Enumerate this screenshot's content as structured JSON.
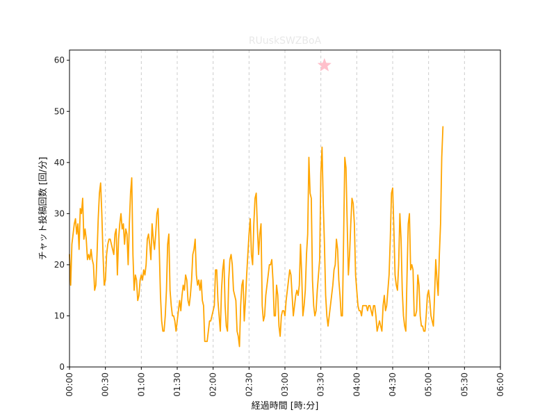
{
  "chart_data": {
    "type": "line",
    "title": "RUuskSWZBoA",
    "xlabel": "経過時間 [時:分]",
    "ylabel": "チャット投稿回数 [回/分]",
    "xlim": [
      0,
      360
    ],
    "ylim": [
      0,
      62
    ],
    "x_ticks": [
      {
        "value": 0,
        "label": "00:00"
      },
      {
        "value": 30,
        "label": "00:30"
      },
      {
        "value": 60,
        "label": "01:00"
      },
      {
        "value": 90,
        "label": "01:30"
      },
      {
        "value": 120,
        "label": "02:00"
      },
      {
        "value": 150,
        "label": "02:30"
      },
      {
        "value": 180,
        "label": "03:00"
      },
      {
        "value": 210,
        "label": "03:30"
      },
      {
        "value": 240,
        "label": "04:00"
      },
      {
        "value": 270,
        "label": "04:30"
      },
      {
        "value": 300,
        "label": "05:00"
      },
      {
        "value": 330,
        "label": "05:30"
      },
      {
        "value": 360,
        "label": "06:00"
      }
    ],
    "y_ticks": [
      0,
      10,
      20,
      30,
      40,
      50,
      60
    ],
    "vertical_gridlines": true,
    "horizontal_gridlines": false,
    "series": [
      {
        "color": "#FFA500",
        "points": [
          [
            0,
            22
          ],
          [
            1,
            16
          ],
          [
            2,
            24
          ],
          [
            4,
            28
          ],
          [
            5,
            29
          ],
          [
            6,
            26
          ],
          [
            7,
            28
          ],
          [
            8,
            23
          ],
          [
            9,
            31
          ],
          [
            10,
            30
          ],
          [
            11,
            33
          ],
          [
            12,
            25
          ],
          [
            13,
            27
          ],
          [
            14,
            25
          ],
          [
            15,
            21
          ],
          [
            16,
            22
          ],
          [
            17,
            21
          ],
          [
            18,
            23
          ],
          [
            19,
            21
          ],
          [
            20,
            20
          ],
          [
            21,
            15
          ],
          [
            22,
            16
          ],
          [
            23,
            22
          ],
          [
            24,
            29
          ],
          [
            25,
            34
          ],
          [
            26,
            36
          ],
          [
            27,
            30
          ],
          [
            28,
            22
          ],
          [
            29,
            16
          ],
          [
            30,
            17
          ],
          [
            31,
            22
          ],
          [
            32,
            24
          ],
          [
            33,
            25
          ],
          [
            34,
            25
          ],
          [
            35,
            24
          ],
          [
            36,
            23
          ],
          [
            37,
            22
          ],
          [
            38,
            26
          ],
          [
            39,
            27
          ],
          [
            40,
            18
          ],
          [
            41,
            25
          ],
          [
            42,
            28
          ],
          [
            43,
            30
          ],
          [
            44,
            27
          ],
          [
            45,
            28
          ],
          [
            46,
            24
          ],
          [
            47,
            27
          ],
          [
            48,
            26
          ],
          [
            49,
            20
          ],
          [
            50,
            28
          ],
          [
            51,
            34
          ],
          [
            52,
            37
          ],
          [
            53,
            22
          ],
          [
            54,
            15
          ],
          [
            55,
            18
          ],
          [
            56,
            17
          ],
          [
            57,
            13
          ],
          [
            58,
            14
          ],
          [
            59,
            17
          ],
          [
            60,
            18
          ],
          [
            61,
            17
          ],
          [
            62,
            19
          ],
          [
            63,
            18
          ],
          [
            64,
            20
          ],
          [
            65,
            25
          ],
          [
            66,
            26
          ],
          [
            67,
            24
          ],
          [
            68,
            21
          ],
          [
            69,
            28
          ],
          [
            70,
            25
          ],
          [
            71,
            23
          ],
          [
            72,
            26
          ],
          [
            73,
            30
          ],
          [
            74,
            31
          ],
          [
            75,
            23
          ],
          [
            76,
            14
          ],
          [
            77,
            9
          ],
          [
            78,
            7
          ],
          [
            79,
            7
          ],
          [
            80,
            10
          ],
          [
            81,
            15
          ],
          [
            82,
            24
          ],
          [
            83,
            26
          ],
          [
            84,
            15
          ],
          [
            85,
            12
          ],
          [
            86,
            10
          ],
          [
            87,
            10
          ],
          [
            88,
            9
          ],
          [
            89,
            7
          ],
          [
            90,
            9
          ],
          [
            91,
            11
          ],
          [
            92,
            13
          ],
          [
            93,
            11
          ],
          [
            94,
            14
          ],
          [
            95,
            16
          ],
          [
            96,
            15
          ],
          [
            97,
            18
          ],
          [
            98,
            17
          ],
          [
            99,
            13
          ],
          [
            100,
            12
          ],
          [
            101,
            14
          ],
          [
            102,
            17
          ],
          [
            103,
            22
          ],
          [
            104,
            23
          ],
          [
            105,
            25
          ],
          [
            106,
            18
          ],
          [
            107,
            16
          ],
          [
            108,
            17
          ],
          [
            109,
            15
          ],
          [
            110,
            17
          ],
          [
            111,
            13
          ],
          [
            112,
            12
          ],
          [
            113,
            5
          ],
          [
            114,
            5
          ],
          [
            115,
            5
          ],
          [
            116,
            7
          ],
          [
            117,
            9
          ],
          [
            118,
            9
          ],
          [
            119,
            10
          ],
          [
            120,
            11
          ],
          [
            121,
            12
          ],
          [
            122,
            19
          ],
          [
            123,
            19
          ],
          [
            124,
            13
          ],
          [
            125,
            10
          ],
          [
            126,
            7
          ],
          [
            127,
            15
          ],
          [
            128,
            19
          ],
          [
            129,
            21
          ],
          [
            130,
            12
          ],
          [
            131,
            8
          ],
          [
            132,
            7
          ],
          [
            133,
            17
          ],
          [
            134,
            21
          ],
          [
            135,
            22
          ],
          [
            136,
            20
          ],
          [
            137,
            15
          ],
          [
            138,
            14
          ],
          [
            139,
            13
          ],
          [
            140,
            7
          ],
          [
            141,
            6
          ],
          [
            142,
            4
          ],
          [
            143,
            12
          ],
          [
            144,
            16
          ],
          [
            145,
            17
          ],
          [
            146,
            9
          ],
          [
            147,
            13
          ],
          [
            148,
            18
          ],
          [
            149,
            22
          ],
          [
            150,
            26
          ],
          [
            151,
            29
          ],
          [
            152,
            22
          ],
          [
            153,
            20
          ],
          [
            154,
            28
          ],
          [
            155,
            33
          ],
          [
            156,
            34
          ],
          [
            157,
            27
          ],
          [
            158,
            22
          ],
          [
            159,
            26
          ],
          [
            160,
            28
          ],
          [
            161,
            12
          ],
          [
            162,
            9
          ],
          [
            163,
            10
          ],
          [
            164,
            14
          ],
          [
            165,
            16
          ],
          [
            166,
            18
          ],
          [
            167,
            20
          ],
          [
            168,
            20
          ],
          [
            169,
            21
          ],
          [
            170,
            17
          ],
          [
            171,
            10
          ],
          [
            172,
            10
          ],
          [
            173,
            16
          ],
          [
            174,
            14
          ],
          [
            175,
            8
          ],
          [
            176,
            6
          ],
          [
            177,
            10
          ],
          [
            178,
            11
          ],
          [
            179,
            11
          ],
          [
            180,
            10
          ],
          [
            181,
            13
          ],
          [
            182,
            15
          ],
          [
            183,
            17
          ],
          [
            184,
            19
          ],
          [
            185,
            18
          ],
          [
            186,
            14
          ],
          [
            187,
            10
          ],
          [
            188,
            12
          ],
          [
            189,
            14
          ],
          [
            190,
            15
          ],
          [
            191,
            14
          ],
          [
            192,
            16
          ],
          [
            193,
            24
          ],
          [
            194,
            18
          ],
          [
            195,
            10
          ],
          [
            196,
            12
          ],
          [
            197,
            15
          ],
          [
            198,
            22
          ],
          [
            199,
            26
          ],
          [
            200,
            41
          ],
          [
            201,
            34
          ],
          [
            202,
            33
          ],
          [
            203,
            17
          ],
          [
            204,
            12
          ],
          [
            205,
            10
          ],
          [
            206,
            11
          ],
          [
            207,
            15
          ],
          [
            208,
            18
          ],
          [
            209,
            21
          ],
          [
            210,
            38
          ],
          [
            211,
            43
          ],
          [
            212,
            32
          ],
          [
            213,
            24
          ],
          [
            214,
            14
          ],
          [
            215,
            10
          ],
          [
            216,
            8
          ],
          [
            217,
            10
          ],
          [
            218,
            12
          ],
          [
            219,
            14
          ],
          [
            220,
            16
          ],
          [
            221,
            19
          ],
          [
            222,
            20
          ],
          [
            223,
            25
          ],
          [
            224,
            23
          ],
          [
            225,
            17
          ],
          [
            226,
            14
          ],
          [
            227,
            10
          ],
          [
            228,
            10
          ],
          [
            229,
            25
          ],
          [
            230,
            41
          ],
          [
            231,
            39
          ],
          [
            232,
            28
          ],
          [
            233,
            18
          ],
          [
            234,
            22
          ],
          [
            235,
            28
          ],
          [
            236,
            33
          ],
          [
            237,
            32
          ],
          [
            238,
            28
          ],
          [
            239,
            18
          ],
          [
            240,
            15
          ],
          [
            241,
            12
          ],
          [
            242,
            11
          ],
          [
            243,
            11
          ],
          [
            244,
            10
          ],
          [
            245,
            12
          ],
          [
            246,
            12
          ],
          [
            247,
            12
          ],
          [
            248,
            12
          ],
          [
            249,
            11
          ],
          [
            250,
            12
          ],
          [
            251,
            12
          ],
          [
            252,
            11
          ],
          [
            253,
            10
          ],
          [
            254,
            12
          ],
          [
            255,
            12
          ],
          [
            256,
            10
          ],
          [
            257,
            7
          ],
          [
            258,
            8
          ],
          [
            259,
            9
          ],
          [
            260,
            8
          ],
          [
            261,
            7
          ],
          [
            262,
            12
          ],
          [
            263,
            14
          ],
          [
            264,
            11
          ],
          [
            265,
            12
          ],
          [
            266,
            15
          ],
          [
            267,
            18
          ],
          [
            268,
            25
          ],
          [
            269,
            34
          ],
          [
            270,
            35
          ],
          [
            271,
            27
          ],
          [
            272,
            18
          ],
          [
            273,
            16
          ],
          [
            274,
            15
          ],
          [
            275,
            20
          ],
          [
            276,
            30
          ],
          [
            277,
            25
          ],
          [
            278,
            15
          ],
          [
            279,
            10
          ],
          [
            280,
            8
          ],
          [
            281,
            7
          ],
          [
            282,
            18
          ],
          [
            283,
            28
          ],
          [
            284,
            30
          ],
          [
            285,
            19
          ],
          [
            286,
            20
          ],
          [
            287,
            19
          ],
          [
            288,
            10
          ],
          [
            289,
            10
          ],
          [
            290,
            11
          ],
          [
            291,
            18
          ],
          [
            292,
            16
          ],
          [
            293,
            10
          ],
          [
            294,
            8
          ],
          [
            295,
            8
          ],
          [
            296,
            7
          ],
          [
            297,
            7
          ],
          [
            298,
            10
          ],
          [
            299,
            14
          ],
          [
            300,
            15
          ],
          [
            301,
            13
          ],
          [
            302,
            10
          ],
          [
            303,
            9
          ],
          [
            304,
            8
          ],
          [
            305,
            14
          ],
          [
            306,
            21
          ],
          [
            307,
            17
          ],
          [
            308,
            14
          ],
          [
            309,
            22
          ],
          [
            310,
            28
          ],
          [
            311,
            41
          ],
          [
            312,
            47
          ]
        ]
      }
    ],
    "marker": {
      "shape": "star",
      "x": 213,
      "y": 59,
      "color": "#FFC0CB"
    }
  }
}
